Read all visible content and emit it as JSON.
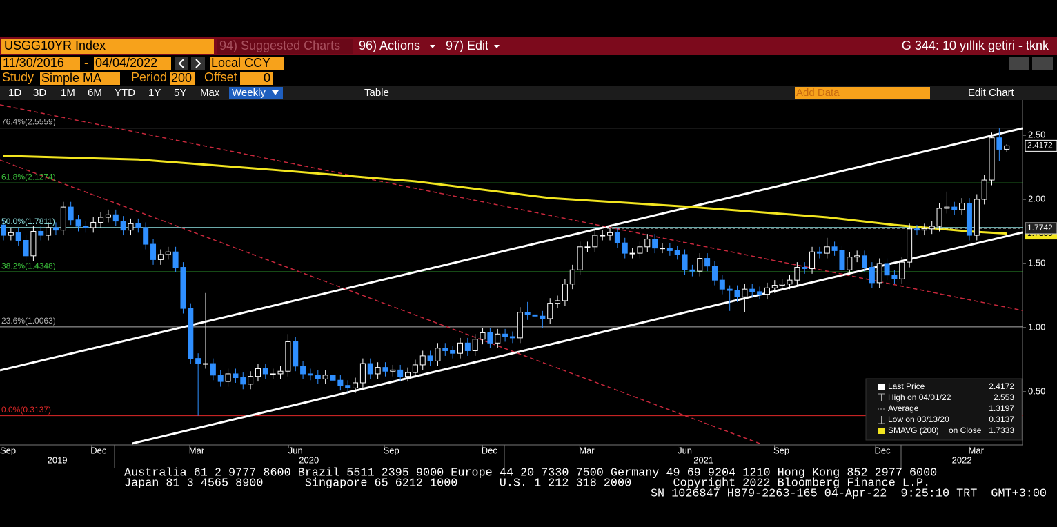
{
  "toolbar": {
    "ticker": "USGG10YR Index",
    "suggested": "94) Suggested Charts",
    "actions": "96) Actions",
    "edit": "97) Edit",
    "title": "G 344: 10 yıllık getiri - tknk",
    "start_date": "11/30/2016",
    "date_separator": "-",
    "end_date": "04/04/2022",
    "currency": "Local CCY",
    "study_label": "Study",
    "study": "Simple MA",
    "period_label": "Period",
    "period": 200,
    "offset_label": "Offset",
    "offset": 0,
    "ranges": [
      "1D",
      "3D",
      "1M",
      "6M",
      "YTD",
      "1Y",
      "5Y",
      "Max"
    ],
    "frequency": "Weekly",
    "table": "Table",
    "add_data": "Add Data",
    "edit_chart": "Edit Chart"
  },
  "footer": [
    "Australia 61 2 9777 8600 Brazil 5511 2395 9000 Europe 44 20 7330 7500 Germany 49 69 9204 1210 Hong Kong 852 2977 6000",
    "Japan 81 3 4565 8900      Singapore 65 6212 1000      U.S. 1 212 318 2000      Copyright 2022 Bloomberg Finance L.P.",
    "SN 1026847 H879-2263-165 04-Apr-22  9:25:10 TRT  GMT+3:00"
  ],
  "chart_data": {
    "type": "candlestick",
    "up_color": "#ffffff",
    "down_color": "#2f8fff",
    "open": [
      1.8,
      1.72,
      1.74,
      1.68,
      1.56,
      1.75,
      1.72,
      1.78,
      1.76,
      1.94,
      1.84,
      1.79,
      1.78,
      1.82,
      1.86,
      1.88,
      1.83,
      1.76,
      1.81,
      1.78,
      1.65,
      1.53,
      1.57,
      1.59,
      1.47,
      1.15,
      0.76,
      0.72,
      0.72,
      0.63,
      0.58,
      0.64,
      0.61,
      0.56,
      0.62,
      0.68,
      0.64,
      0.64,
      0.66,
      0.89,
      0.7,
      0.64,
      0.63,
      0.6,
      0.63,
      0.59,
      0.55,
      0.53,
      0.57,
      0.72,
      0.64,
      0.69,
      0.66,
      0.67,
      0.62,
      0.65,
      0.71,
      0.78,
      0.74,
      0.84,
      0.82,
      0.8,
      0.88,
      0.82,
      0.91,
      0.96,
      0.88,
      0.95,
      0.93,
      0.92,
      1.12,
      1.1,
      1.09,
      1.07,
      1.19,
      1.21,
      1.34,
      1.45,
      1.63,
      1.63,
      1.72,
      1.72,
      1.74,
      1.66,
      1.58,
      1.58,
      1.63,
      1.69,
      1.62,
      1.62,
      1.6,
      1.57,
      1.45,
      1.44,
      1.54,
      1.48,
      1.37,
      1.3,
      1.29,
      1.24,
      1.3,
      1.28,
      1.26,
      1.31,
      1.33,
      1.34,
      1.37,
      1.47,
      1.46,
      1.59,
      1.58,
      1.63,
      1.6,
      1.45,
      1.55,
      1.56,
      1.47,
      1.35,
      1.5,
      1.41,
      1.38,
      1.51,
      1.77,
      1.76,
      1.77,
      1.79,
      1.93,
      1.94,
      1.92,
      1.97,
      1.72,
      2.0,
      2.15,
      2.48,
      2.39
    ],
    "high": [
      1.84,
      1.78,
      1.78,
      1.72,
      1.79,
      1.79,
      1.82,
      1.82,
      1.98,
      1.98,
      1.88,
      1.83,
      1.86,
      1.9,
      1.92,
      1.92,
      1.87,
      1.85,
      1.85,
      1.82,
      1.69,
      1.61,
      1.63,
      1.63,
      1.51,
      1.19,
      0.8,
      1.27,
      0.76,
      0.67,
      0.68,
      0.68,
      0.65,
      0.66,
      0.72,
      0.72,
      0.68,
      0.7,
      0.95,
      0.93,
      0.74,
      0.68,
      0.67,
      0.67,
      0.67,
      0.63,
      0.59,
      0.61,
      0.76,
      0.76,
      0.73,
      0.73,
      0.71,
      0.71,
      0.69,
      0.75,
      0.82,
      0.82,
      0.88,
      0.88,
      0.86,
      0.92,
      0.92,
      0.95,
      1.0,
      1.0,
      0.99,
      0.99,
      0.97,
      1.16,
      1.2,
      1.14,
      1.13,
      1.23,
      1.25,
      1.38,
      1.49,
      1.67,
      1.67,
      1.76,
      1.76,
      1.78,
      1.78,
      1.7,
      1.62,
      1.67,
      1.73,
      1.73,
      1.66,
      1.66,
      1.64,
      1.61,
      1.49,
      1.58,
      1.58,
      1.52,
      1.41,
      1.33,
      1.33,
      1.34,
      1.34,
      1.32,
      1.35,
      1.37,
      1.38,
      1.41,
      1.51,
      1.51,
      1.63,
      1.63,
      1.7,
      1.67,
      1.64,
      1.59,
      1.6,
      1.6,
      1.51,
      1.54,
      1.54,
      1.45,
      1.55,
      1.81,
      1.8,
      1.81,
      1.83,
      1.97,
      2.06,
      1.98,
      2.01,
      2.01,
      2.04,
      2.19,
      2.52,
      2.553,
      2.43
    ],
    "low": [
      1.68,
      1.68,
      1.64,
      1.52,
      1.52,
      1.68,
      1.68,
      1.72,
      1.72,
      1.8,
      1.75,
      1.74,
      1.74,
      1.78,
      1.82,
      1.79,
      1.72,
      1.72,
      1.74,
      1.61,
      1.49,
      1.49,
      1.53,
      1.43,
      1.11,
      0.72,
      0.3137,
      0.68,
      0.59,
      0.54,
      0.54,
      0.57,
      0.52,
      0.52,
      0.58,
      0.6,
      0.6,
      0.6,
      0.62,
      0.66,
      0.6,
      0.59,
      0.56,
      0.56,
      0.55,
      0.51,
      0.49,
      0.49,
      0.53,
      0.6,
      0.6,
      0.62,
      0.62,
      0.58,
      0.58,
      0.61,
      0.67,
      0.7,
      0.7,
      0.78,
      0.76,
      0.76,
      0.78,
      0.78,
      0.87,
      0.84,
      0.84,
      0.89,
      0.88,
      0.88,
      1.06,
      1.05,
      1.0,
      1.03,
      1.15,
      1.17,
      1.3,
      1.41,
      1.59,
      1.59,
      1.68,
      1.68,
      1.62,
      1.54,
      1.54,
      1.54,
      1.59,
      1.58,
      1.58,
      1.56,
      1.53,
      1.41,
      1.4,
      1.4,
      1.44,
      1.33,
      1.26,
      1.13,
      1.2,
      1.12,
      1.24,
      1.22,
      1.22,
      1.27,
      1.29,
      1.3,
      1.33,
      1.42,
      1.42,
      1.54,
      1.54,
      1.56,
      1.41,
      1.41,
      1.51,
      1.43,
      1.31,
      1.31,
      1.37,
      1.34,
      1.34,
      1.47,
      1.72,
      1.72,
      1.73,
      1.75,
      1.89,
      1.88,
      1.88,
      1.68,
      1.68,
      1.96,
      2.11,
      2.3,
      2.37
    ],
    "close": [
      1.72,
      1.74,
      1.68,
      1.56,
      1.75,
      1.72,
      1.78,
      1.76,
      1.94,
      1.84,
      1.79,
      1.78,
      1.82,
      1.86,
      1.88,
      1.83,
      1.76,
      1.81,
      1.78,
      1.65,
      1.53,
      1.57,
      1.59,
      1.47,
      1.15,
      0.76,
      0.72,
      0.72,
      0.63,
      0.58,
      0.64,
      0.61,
      0.56,
      0.62,
      0.68,
      0.64,
      0.64,
      0.66,
      0.89,
      0.7,
      0.64,
      0.63,
      0.6,
      0.63,
      0.59,
      0.55,
      0.53,
      0.57,
      0.72,
      0.64,
      0.69,
      0.66,
      0.67,
      0.62,
      0.65,
      0.71,
      0.78,
      0.74,
      0.84,
      0.82,
      0.8,
      0.88,
      0.82,
      0.91,
      0.96,
      0.88,
      0.95,
      0.93,
      0.92,
      1.12,
      1.1,
      1.09,
      1.07,
      1.19,
      1.21,
      1.34,
      1.45,
      1.63,
      1.63,
      1.72,
      1.72,
      1.74,
      1.66,
      1.58,
      1.58,
      1.63,
      1.69,
      1.62,
      1.62,
      1.6,
      1.57,
      1.45,
      1.44,
      1.54,
      1.48,
      1.37,
      1.3,
      1.29,
      1.24,
      1.3,
      1.28,
      1.26,
      1.31,
      1.33,
      1.34,
      1.37,
      1.47,
      1.46,
      1.59,
      1.58,
      1.63,
      1.6,
      1.45,
      1.55,
      1.56,
      1.47,
      1.35,
      1.5,
      1.41,
      1.38,
      1.51,
      1.77,
      1.76,
      1.77,
      1.79,
      1.93,
      1.94,
      1.92,
      1.97,
      1.72,
      2.0,
      2.15,
      2.48,
      2.39,
      2.4172
    ],
    "sma": {
      "name": "SMAVG (200)",
      "color": "#f2e51f",
      "x": [
        0,
        18,
        36,
        55,
        73,
        92,
        110,
        119,
        129,
        134
      ],
      "values": [
        2.34,
        2.31,
        2.23,
        2.14,
        2.01,
        1.94,
        1.86,
        1.8,
        1.75,
        1.7333
      ]
    },
    "fib_levels": [
      {
        "label": "76.4%(2.5559)",
        "value": 2.5559,
        "color": "#b0b0b0"
      },
      {
        "label": "61.8%(2.1274)",
        "value": 2.1274,
        "color": "#3cc43c"
      },
      {
        "label": "50.0%(1.7811)",
        "value": 1.7811,
        "color": "#8fe3e3"
      },
      {
        "label": "38.2%(1.4348)",
        "value": 1.4348,
        "color": "#3cc43c"
      },
      {
        "label": "23.6%(1.0063)",
        "value": 1.0063,
        "color": "#b0b0b0"
      },
      {
        "label": "0.0%(0.3137)",
        "value": 0.3137,
        "color": "#e02828"
      }
    ],
    "trendlines": [
      {
        "color": "#ffffff",
        "dashed": false,
        "x": [
          -0.46,
          136.1
        ],
        "values": [
          0.667,
          2.554
        ]
      },
      {
        "color": "#ffffff",
        "dashed": false,
        "x": [
          17.2,
          136.1
        ],
        "values": [
          0.097,
          1.742
        ]
      },
      {
        "color": "#c8283c",
        "dashed": true,
        "x": [
          -0.46,
          136.1
        ],
        "values": [
          2.737,
          1.134
        ]
      },
      {
        "color": "#c8283c",
        "dashed": true,
        "x": [
          -0.46,
          101.0
        ],
        "values": [
          2.306,
          0.097
        ]
      }
    ],
    "price_line": 1.7742,
    "legend": [
      "Last Price",
      "High on 04/01/22",
      "Average",
      "Low on 03/13/20",
      "on Close"
    ],
    "average": 1.3197,
    "xlim": [
      -0.46,
      136.1
    ],
    "ylim": [
      0.086,
      2.774
    ],
    "yticks": [
      {
        "value": 0.5,
        "label": "0.50"
      },
      {
        "value": 1,
        "label": "1.00"
      },
      {
        "value": 1.5,
        "label": "1.50"
      },
      {
        "value": 2,
        "label": "2.00"
      },
      {
        "value": 2.5,
        "label": "2.50"
      }
    ],
    "xticks": [
      {
        "value": 0.6,
        "label": "Sep"
      },
      {
        "value": 12.7,
        "label": "Dec"
      },
      {
        "value": 25.8,
        "label": "Mar"
      },
      {
        "value": 39,
        "label": "Jun"
      },
      {
        "value": 51.8,
        "label": "Sep"
      },
      {
        "value": 64.9,
        "label": "Dec"
      },
      {
        "value": 77.9,
        "label": "Mar"
      },
      {
        "value": 91,
        "label": "Jun"
      },
      {
        "value": 103.9,
        "label": "Sep"
      },
      {
        "value": 117.4,
        "label": "Dec"
      },
      {
        "value": 129.9,
        "label": "Mar"
      }
    ],
    "year_ticks": [
      {
        "value": 7.2,
        "label": "2019"
      },
      {
        "value": 40.8,
        "label": "2020"
      },
      {
        "value": 93.5,
        "label": "2021"
      },
      {
        "value": 128,
        "label": "2022"
      }
    ]
  }
}
